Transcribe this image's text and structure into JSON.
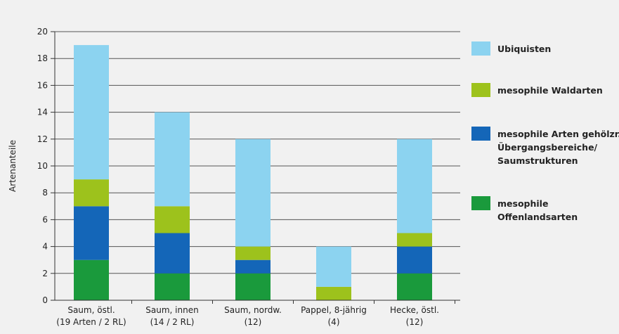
{
  "chart_data": {
    "type": "bar",
    "stacked": true,
    "title": "",
    "xlabel": "",
    "ylabel": "Artenanteile",
    "ylim": [
      0,
      20
    ],
    "yticks": [
      0,
      2,
      4,
      6,
      8,
      10,
      12,
      14,
      16,
      18,
      20
    ],
    "grid": "horizontal",
    "legend_position": "right",
    "categories": [
      [
        "Saum, östl.",
        "(19 Arten / 2 RL)"
      ],
      [
        "Saum, innen",
        "(14 / 2 RL)"
      ],
      [
        "Saum, nordw.",
        "(12)"
      ],
      [
        "Pappel, 8-jährig",
        "(4)"
      ],
      [
        "Hecke, östl.",
        "(12)"
      ]
    ],
    "series": [
      {
        "name": [
          "mesophile",
          "Offenlandsarten"
        ],
        "color": "#1a9a3c",
        "values": [
          3,
          2,
          2,
          0,
          2
        ]
      },
      {
        "name": [
          "mesophile Arten gehölzr.",
          "Übergangsbereiche/",
          "Saumstrukturen"
        ],
        "color": "#1466b8",
        "values": [
          4,
          3,
          1,
          0,
          2
        ]
      },
      {
        "name": [
          "mesophile Waldarten"
        ],
        "color": "#9dc21c",
        "values": [
          2,
          2,
          1,
          1,
          1
        ]
      },
      {
        "name": [
          "Ubiquisten"
        ],
        "color": "#8cd3f0",
        "values": [
          10,
          7,
          8,
          3,
          7
        ]
      }
    ]
  }
}
